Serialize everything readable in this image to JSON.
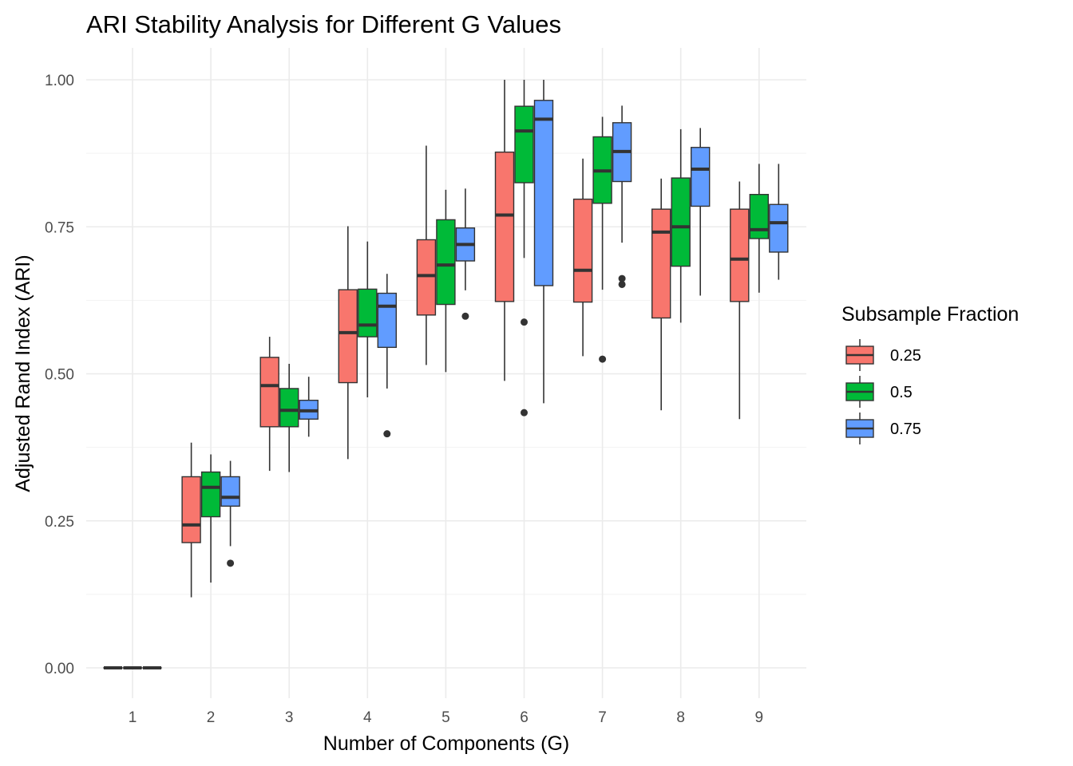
{
  "chart_data": {
    "type": "boxplot",
    "title": "ARI Stability Analysis for Different G Values",
    "xlabel": "Number of Components (G)",
    "ylabel": "Adjusted Rand Index (ARI)",
    "categories": [
      "1",
      "2",
      "3",
      "4",
      "5",
      "6",
      "7",
      "8",
      "9"
    ],
    "ylim": [
      -0.05,
      1.03
    ],
    "yticks": [
      0.0,
      0.25,
      0.5,
      0.75,
      1.0
    ],
    "ytick_labels": [
      "0.00",
      "0.25",
      "0.50",
      "0.75",
      "1.00"
    ],
    "grid": true,
    "legend": {
      "title": "Subsample Fraction",
      "position": "right"
    },
    "series": [
      {
        "name": "0.25",
        "color": "#F8766D",
        "boxes": [
          {
            "min": 0.0,
            "q1": 0.0,
            "median": 0.0,
            "q3": 0.0,
            "max": 0.0,
            "outliers": []
          },
          {
            "min": 0.12,
            "q1": 0.213,
            "median": 0.243,
            "q3": 0.325,
            "max": 0.383,
            "outliers": []
          },
          {
            "min": 0.335,
            "q1": 0.41,
            "median": 0.48,
            "q3": 0.528,
            "max": 0.563,
            "outliers": []
          },
          {
            "min": 0.355,
            "q1": 0.485,
            "median": 0.57,
            "q3": 0.643,
            "max": 0.751,
            "outliers": []
          },
          {
            "min": 0.515,
            "q1": 0.6,
            "median": 0.667,
            "q3": 0.728,
            "max": 0.888,
            "outliers": []
          },
          {
            "min": 0.488,
            "q1": 0.623,
            "median": 0.77,
            "q3": 0.877,
            "max": 1.0,
            "outliers": []
          },
          {
            "min": 0.53,
            "q1": 0.622,
            "median": 0.676,
            "q3": 0.797,
            "max": 0.866,
            "outliers": []
          },
          {
            "min": 0.438,
            "q1": 0.595,
            "median": 0.741,
            "q3": 0.78,
            "max": 0.832,
            "outliers": []
          },
          {
            "min": 0.423,
            "q1": 0.623,
            "median": 0.695,
            "q3": 0.78,
            "max": 0.827,
            "outliers": []
          }
        ]
      },
      {
        "name": "0.5",
        "color": "#00BA38",
        "boxes": [
          {
            "min": 0.0,
            "q1": 0.0,
            "median": 0.0,
            "q3": 0.0,
            "max": 0.0,
            "outliers": []
          },
          {
            "min": 0.145,
            "q1": 0.257,
            "median": 0.307,
            "q3": 0.333,
            "max": 0.363,
            "outliers": []
          },
          {
            "min": 0.333,
            "q1": 0.41,
            "median": 0.438,
            "q3": 0.475,
            "max": 0.517,
            "outliers": []
          },
          {
            "min": 0.46,
            "q1": 0.563,
            "median": 0.583,
            "q3": 0.644,
            "max": 0.725,
            "outliers": []
          },
          {
            "min": 0.503,
            "q1": 0.618,
            "median": 0.685,
            "q3": 0.762,
            "max": 0.813,
            "outliers": []
          },
          {
            "min": 0.697,
            "q1": 0.825,
            "median": 0.913,
            "q3": 0.955,
            "max": 1.0,
            "outliers": [
              0.588,
              0.434
            ]
          },
          {
            "min": 0.643,
            "q1": 0.79,
            "median": 0.845,
            "q3": 0.903,
            "max": 0.937,
            "outliers": [
              0.525
            ]
          },
          {
            "min": 0.587,
            "q1": 0.683,
            "median": 0.75,
            "q3": 0.833,
            "max": 0.916,
            "outliers": []
          },
          {
            "min": 0.638,
            "q1": 0.73,
            "median": 0.745,
            "q3": 0.805,
            "max": 0.857,
            "outliers": []
          }
        ]
      },
      {
        "name": "0.75",
        "color": "#619CFF",
        "boxes": [
          {
            "min": 0.0,
            "q1": 0.0,
            "median": 0.0,
            "q3": 0.0,
            "max": 0.0,
            "outliers": []
          },
          {
            "min": 0.207,
            "q1": 0.275,
            "median": 0.29,
            "q3": 0.325,
            "max": 0.352,
            "outliers": [
              0.178
            ]
          },
          {
            "min": 0.393,
            "q1": 0.423,
            "median": 0.437,
            "q3": 0.455,
            "max": 0.495,
            "outliers": []
          },
          {
            "min": 0.475,
            "q1": 0.545,
            "median": 0.615,
            "q3": 0.637,
            "max": 0.67,
            "outliers": [
              0.398
            ]
          },
          {
            "min": 0.642,
            "q1": 0.692,
            "median": 0.72,
            "q3": 0.748,
            "max": 0.815,
            "outliers": [
              0.598
            ]
          },
          {
            "min": 0.45,
            "q1": 0.65,
            "median": 0.933,
            "q3": 0.965,
            "max": 1.0,
            "outliers": []
          },
          {
            "min": 0.723,
            "q1": 0.827,
            "median": 0.878,
            "q3": 0.927,
            "max": 0.956,
            "outliers": [
              0.662,
              0.652
            ]
          },
          {
            "min": 0.633,
            "q1": 0.785,
            "median": 0.848,
            "q3": 0.885,
            "max": 0.918,
            "outliers": []
          },
          {
            "min": 0.66,
            "q1": 0.707,
            "median": 0.757,
            "q3": 0.788,
            "max": 0.857,
            "outliers": []
          }
        ]
      }
    ]
  }
}
